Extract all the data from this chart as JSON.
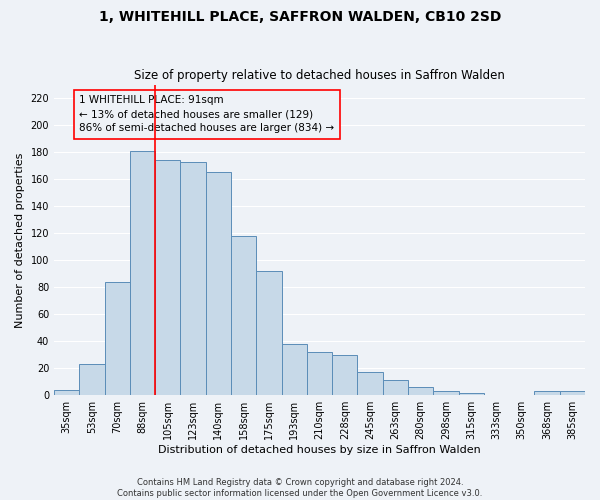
{
  "title": "1, WHITEHILL PLACE, SAFFRON WALDEN, CB10 2SD",
  "subtitle": "Size of property relative to detached houses in Saffron Walden",
  "xlabel": "Distribution of detached houses by size in Saffron Walden",
  "ylabel": "Number of detached properties",
  "categories": [
    "35sqm",
    "53sqm",
    "70sqm",
    "88sqm",
    "105sqm",
    "123sqm",
    "140sqm",
    "158sqm",
    "175sqm",
    "193sqm",
    "210sqm",
    "228sqm",
    "245sqm",
    "263sqm",
    "280sqm",
    "298sqm",
    "315sqm",
    "333sqm",
    "350sqm",
    "368sqm",
    "385sqm"
  ],
  "values": [
    4,
    23,
    84,
    181,
    174,
    173,
    165,
    118,
    92,
    38,
    32,
    30,
    17,
    11,
    6,
    3,
    2,
    0,
    0,
    3,
    3
  ],
  "bar_color": "#c7d9e8",
  "bar_edge_color": "#5b8db8",
  "ylim": [
    0,
    230
  ],
  "yticks": [
    0,
    20,
    40,
    60,
    80,
    100,
    120,
    140,
    160,
    180,
    200,
    220
  ],
  "red_line_x": 3.5,
  "annotation_text": "1 WHITEHILL PLACE: 91sqm\n← 13% of detached houses are smaller (129)\n86% of semi-detached houses are larger (834) →",
  "footnote1": "Contains HM Land Registry data © Crown copyright and database right 2024.",
  "footnote2": "Contains public sector information licensed under the Open Government Licence v3.0.",
  "bg_color": "#eef2f7",
  "grid_color": "#ffffff",
  "title_fontsize": 10,
  "subtitle_fontsize": 8.5,
  "xlabel_fontsize": 8,
  "ylabel_fontsize": 8,
  "tick_fontsize": 7,
  "annotation_fontsize": 7.5,
  "footnote_fontsize": 6
}
